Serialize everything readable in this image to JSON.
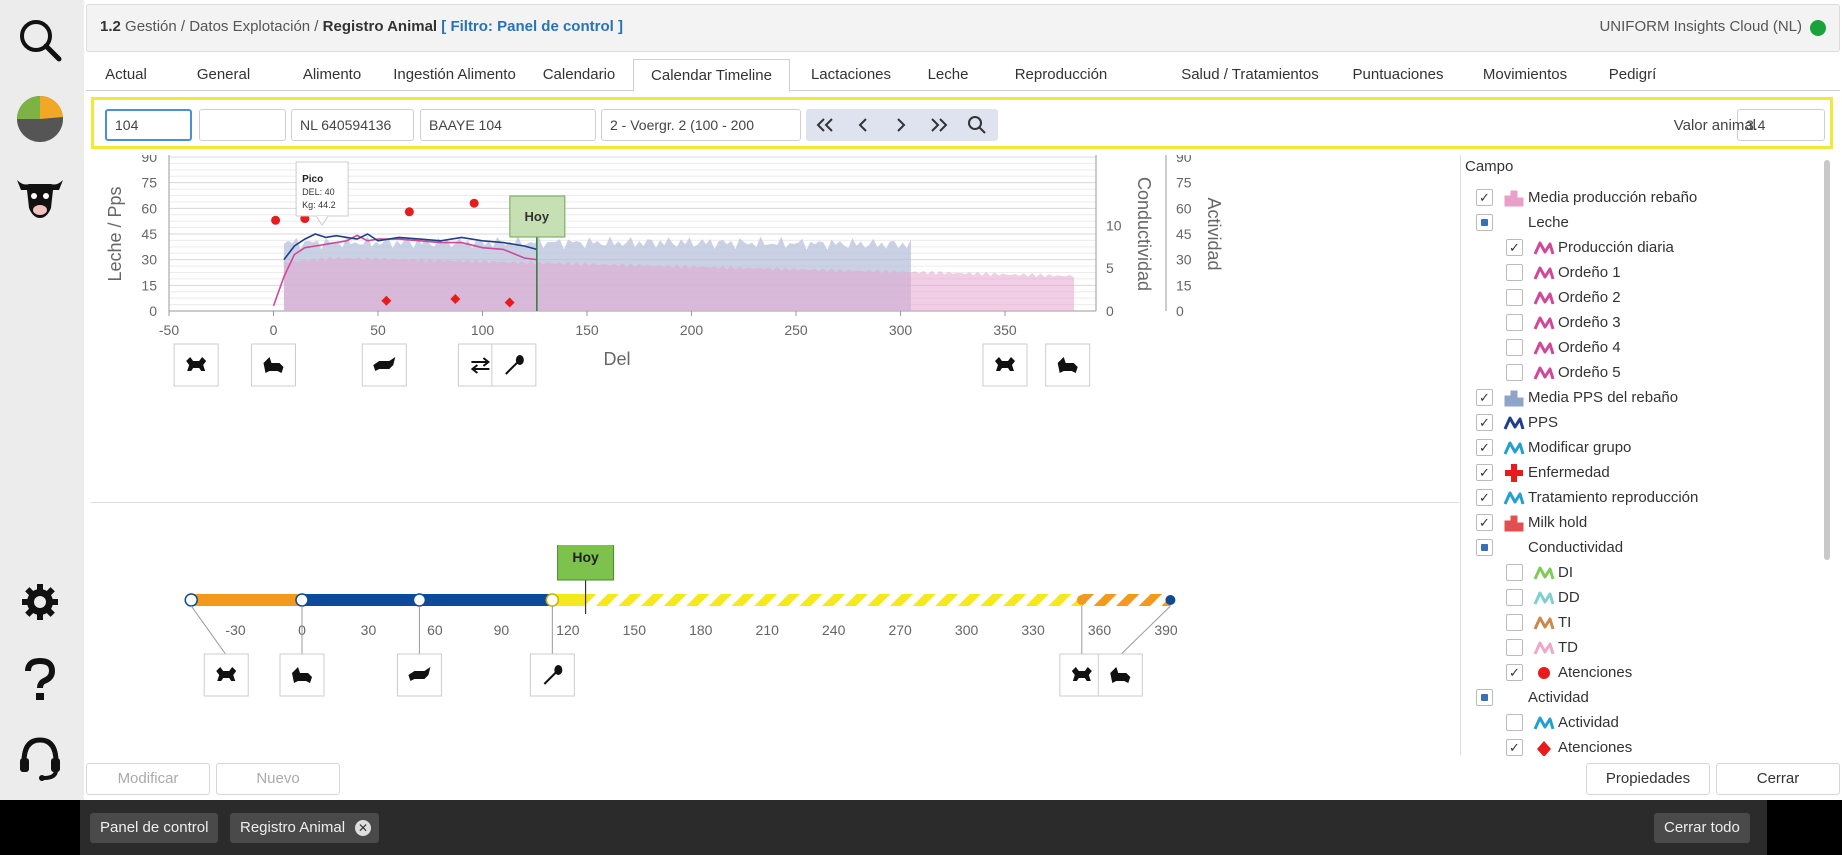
{
  "breadcrumb": {
    "num": "1.2",
    "path": "Gestión / Datos Explotación /",
    "current": "Registro Animal",
    "filter": "[ Filtro: Panel de control ]"
  },
  "cloud": {
    "label": "UNIFORM Insights Cloud (NL)",
    "status_color": "#1aa33c"
  },
  "tabs": [
    "Actual",
    "General",
    "Alimento",
    "Ingestión Alimento",
    "Calendario",
    "Calendar Timeline",
    "Lactaciones",
    "Leche",
    "Reproducción",
    "Salud / Tratamientos",
    "Puntuaciones",
    "Movimientos",
    "Pedigrí"
  ],
  "active_tab": "Calendar Timeline",
  "filter": {
    "animal_number": "104",
    "field2": "",
    "life_number": "NL 640594136",
    "name": "BAAYE 104",
    "group": "2 - Voergr. 2 (100 - 200",
    "valor_label": "Valor animal",
    "valor_value": "3.4"
  },
  "chart_data": [
    {
      "type": "line",
      "xlabel": "Del",
      "ylabel": "Leche / Pps",
      "y2label": "Conductividad",
      "y3label": "Actividad",
      "xlim": [
        -50,
        390
      ],
      "ylim": [
        0,
        100
      ],
      "x_ticks": [
        "-50",
        "0",
        "50",
        "100",
        "150",
        "200",
        "250",
        "300",
        "350"
      ],
      "y_ticks": [
        "0",
        "15",
        "30",
        "45",
        "60",
        "75",
        "90"
      ],
      "y2_ticks": [
        "0",
        "5",
        "10"
      ],
      "y3_ticks": [
        "0",
        "15",
        "30",
        "45",
        "60",
        "75",
        "90"
      ],
      "today": {
        "label": "Hoy",
        "x": 126
      },
      "tooltip": {
        "title": "Pico",
        "line1": "DEL: 40",
        "line2": "Kg: 44.2"
      },
      "series": [
        {
          "name": "Producción diaria",
          "color": "#d0489a",
          "x": [
            0,
            5,
            10,
            15,
            20,
            25,
            30,
            35,
            40,
            45,
            50,
            60,
            70,
            80,
            90,
            100,
            110,
            120,
            126
          ],
          "values": [
            3,
            20,
            33,
            37,
            38,
            39,
            40,
            41,
            44.2,
            41,
            42,
            42,
            41,
            40,
            40,
            37,
            36,
            31,
            30
          ]
        },
        {
          "name": "PPS",
          "color": "#1f3f8c",
          "x": [
            5,
            10,
            15,
            20,
            25,
            30,
            35,
            40,
            45,
            50,
            60,
            70,
            80,
            90,
            100,
            110,
            120,
            126
          ],
          "values": [
            30,
            38,
            42,
            45,
            43,
            44,
            43,
            42,
            45,
            41,
            43,
            42,
            41,
            43,
            41,
            40,
            38,
            36
          ]
        }
      ],
      "atenciones_dots": {
        "x": [
          1,
          15,
          15,
          27,
          65,
          96,
          126
        ],
        "values": [
          53,
          54,
          59,
          59,
          58,
          63,
          59
        ]
      },
      "diamonds": {
        "x": [
          54,
          87,
          113
        ],
        "values": [
          6,
          7,
          5
        ]
      },
      "event_markers_top": [
        {
          "x": -37,
          "icon": "bull-icon"
        },
        {
          "x": 0,
          "icon": "calving-icon"
        },
        {
          "x": 53,
          "icon": "heifer-icon"
        },
        {
          "x": 99,
          "icon": "exchange-icon"
        },
        {
          "x": 115,
          "icon": "insemination-icon"
        },
        {
          "x": 350,
          "icon": "bull-icon"
        },
        {
          "x": 380,
          "icon": "calving-icon"
        }
      ]
    },
    {
      "type": "timeline",
      "xlim": [
        -50,
        395
      ],
      "x_ticks": [
        "-30",
        "0",
        "30",
        "60",
        "90",
        "120",
        "150",
        "180",
        "210",
        "240",
        "270",
        "300",
        "330",
        "360",
        "390"
      ],
      "today": {
        "label": "Hoy",
        "x": 128
      },
      "segments": [
        {
          "from": -50,
          "to": 0,
          "color": "#f39a1e"
        },
        {
          "from": 0,
          "to": 113,
          "color": "#0d4a9a"
        },
        {
          "from": 113,
          "to": 128,
          "color": "#f5e81b"
        },
        {
          "from": 128,
          "to": 352,
          "color": "#f5e81b",
          "hatched": true
        },
        {
          "from": 352,
          "to": 392,
          "color": "#f39a1e",
          "hatched": true
        }
      ],
      "event_markers": [
        {
          "x": -37,
          "icon": "bull-icon"
        },
        {
          "x": 0,
          "icon": "calving-icon"
        },
        {
          "x": 53,
          "icon": "heifer-icon"
        },
        {
          "x": 113,
          "icon": "insemination-icon"
        },
        {
          "x": 352,
          "icon": "bull-icon"
        },
        {
          "x": 382,
          "icon": "calving-icon"
        }
      ]
    }
  ],
  "campo": {
    "title": "Campo",
    "items": [
      {
        "label": "Media producción rebaño",
        "check": "checked",
        "indent": 0,
        "icon": "herd-bar-icon",
        "color": "#e8a0c8"
      },
      {
        "label": "Leche",
        "check": "indeterminate",
        "indent": 0,
        "icon": "",
        "color": ""
      },
      {
        "label": "Producción diaria",
        "check": "checked",
        "indent": 1,
        "icon": "line-icon",
        "color": "#d0489a"
      },
      {
        "label": "Ordeño 1",
        "check": "unchecked",
        "indent": 1,
        "icon": "line-icon",
        "color": "#d0489a"
      },
      {
        "label": "Ordeño 2",
        "check": "unchecked",
        "indent": 1,
        "icon": "line-icon",
        "color": "#d0489a"
      },
      {
        "label": "Ordeño 3",
        "check": "unchecked",
        "indent": 1,
        "icon": "line-icon",
        "color": "#d0489a"
      },
      {
        "label": "Ordeño 4",
        "check": "unchecked",
        "indent": 1,
        "icon": "line-icon",
        "color": "#d0489a"
      },
      {
        "label": "Ordeño 5",
        "check": "unchecked",
        "indent": 1,
        "icon": "line-icon",
        "color": "#d0489a"
      },
      {
        "label": "Media PPS del rebaño",
        "check": "checked",
        "indent": 0,
        "icon": "herd-bar-icon",
        "color": "#8ea4c8"
      },
      {
        "label": "PPS",
        "check": "checked",
        "indent": 0,
        "icon": "line-icon",
        "color": "#1f3f8c"
      },
      {
        "label": "Modificar grupo",
        "check": "checked",
        "indent": 0,
        "icon": "line-icon",
        "color": "#22a0d0"
      },
      {
        "label": "Enfermedad",
        "check": "checked",
        "indent": 0,
        "icon": "cross-icon",
        "color": "#e81c1c"
      },
      {
        "label": "Tratamiento reproducción",
        "check": "checked",
        "indent": 0,
        "icon": "line-icon",
        "color": "#22a0d0"
      },
      {
        "label": "Milk hold",
        "check": "checked",
        "indent": 0,
        "icon": "herd-bar-icon",
        "color": "#e05050"
      },
      {
        "label": "Conductividad",
        "check": "indeterminate",
        "indent": 0,
        "icon": "",
        "color": ""
      },
      {
        "label": "DI",
        "check": "unchecked",
        "indent": 1,
        "icon": "line-icon",
        "color": "#7ecb5a"
      },
      {
        "label": "DD",
        "check": "unchecked",
        "indent": 1,
        "icon": "line-icon",
        "color": "#7ecfd0"
      },
      {
        "label": "TI",
        "check": "unchecked",
        "indent": 1,
        "icon": "line-icon",
        "color": "#c98a4a"
      },
      {
        "label": "TD",
        "check": "unchecked",
        "indent": 1,
        "icon": "line-icon",
        "color": "#f0a8c8"
      },
      {
        "label": "Atenciones",
        "check": "checked",
        "indent": 1,
        "icon": "dot-icon",
        "color": "#e81c1c"
      },
      {
        "label": "Actividad",
        "check": "indeterminate",
        "indent": 0,
        "icon": "",
        "color": ""
      },
      {
        "label": "Actividad",
        "check": "unchecked",
        "indent": 1,
        "icon": "line-icon",
        "color": "#22a0d0"
      },
      {
        "label": "Atenciones",
        "check": "checked",
        "indent": 1,
        "icon": "diamond-icon",
        "color": "#e81c1c"
      }
    ]
  },
  "actions": {
    "modificar": "Modificar",
    "nuevo": "Nuevo",
    "propiedades": "Propiedades",
    "cerrar": "Cerrar"
  },
  "taskbar": {
    "chip1": "Panel de control",
    "chip2": "Registro Animal",
    "close_all": "Cerrar todo"
  }
}
